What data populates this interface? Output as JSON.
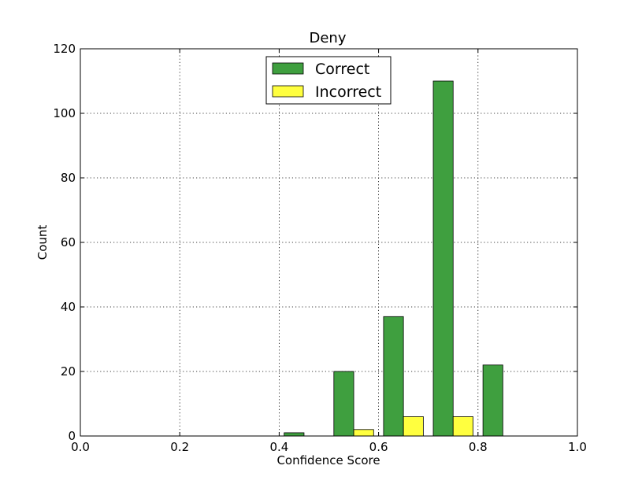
{
  "chart_data": {
    "type": "bar",
    "title": "Deny",
    "xlabel": "Confidence Score",
    "ylabel": "Count",
    "xlim": [
      0.0,
      1.0
    ],
    "ylim": [
      0,
      120
    ],
    "x_ticks": [
      "0.0",
      "0.2",
      "0.4",
      "0.6",
      "0.8",
      "1.0"
    ],
    "y_ticks": [
      "0",
      "20",
      "40",
      "60",
      "80",
      "100",
      "120"
    ],
    "bins": [
      0.0,
      0.1,
      0.2,
      0.3,
      0.4,
      0.5,
      0.6,
      0.7,
      0.8,
      0.9
    ],
    "bin_width": 0.1,
    "grid": true,
    "legend_position": "top-center",
    "series": [
      {
        "name": "Correct",
        "color": "#3f9f3f",
        "values": [
          0,
          0,
          0,
          0,
          1,
          20,
          37,
          110,
          22,
          0
        ]
      },
      {
        "name": "Incorrect",
        "color": "#ffff3f",
        "values": [
          0,
          0,
          0,
          0,
          0,
          2,
          6,
          6,
          0,
          0
        ]
      }
    ]
  }
}
